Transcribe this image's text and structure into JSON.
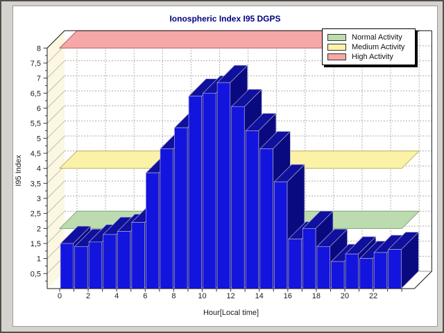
{
  "window": {
    "background": "#D6D3CE"
  },
  "chart_data": {
    "type": "bar",
    "title": "Ionospheric Index I95 DGPS",
    "xlabel": "Hour[Local time]",
    "ylabel": "I95 Index",
    "x": [
      0,
      1,
      2,
      3,
      4,
      5,
      6,
      7,
      8,
      9,
      10,
      11,
      12,
      13,
      14,
      15,
      16,
      17,
      18,
      19,
      20,
      21,
      22,
      23
    ],
    "values": [
      1.5,
      1.4,
      1.55,
      1.8,
      1.9,
      2.2,
      3.85,
      4.65,
      5.35,
      6.4,
      6.5,
      6.85,
      6.05,
      5.25,
      4.65,
      3.55,
      1.65,
      2.0,
      1.4,
      0.9,
      1.15,
      1.0,
      1.2,
      1.3
    ],
    "ylim": [
      0,
      8
    ],
    "ytick_step": 0.5,
    "ytick_labels": [
      "0,5",
      "1",
      "1,5",
      "2",
      "2,5",
      "3",
      "3,5",
      "4",
      "4,5",
      "5",
      "5,5",
      "6",
      "6,5",
      "7",
      "7,5",
      "8"
    ],
    "xtick_labels": [
      "0",
      "2",
      "4",
      "6",
      "8",
      "10",
      "12",
      "14",
      "16",
      "18",
      "20",
      "22"
    ],
    "decimal_separator": ",",
    "grid": true,
    "projection": "3d-bars",
    "legend": {
      "position": "top-right"
    },
    "bands": [
      {
        "label": "Normal Activity",
        "value": 2,
        "fill": "#BCDCB0",
        "border": "#7FA674"
      },
      {
        "label": "Medium Activity",
        "value": 4,
        "fill": "#FBF2A8",
        "border": "#C0B060"
      },
      {
        "label": "High Activity",
        "value": 8,
        "fill": "#F6A7A7",
        "border": "#B25B5B"
      }
    ],
    "colors": {
      "bar_front": "#1414DF",
      "bar_top": "#10109E",
      "bar_side": "#0A0A80",
      "bar_outline": "#A9A9CE",
      "title": "#000080",
      "axis_text": "#1A1A1A",
      "wall": "#FBF7E1",
      "grid": "#ABABAB"
    }
  }
}
